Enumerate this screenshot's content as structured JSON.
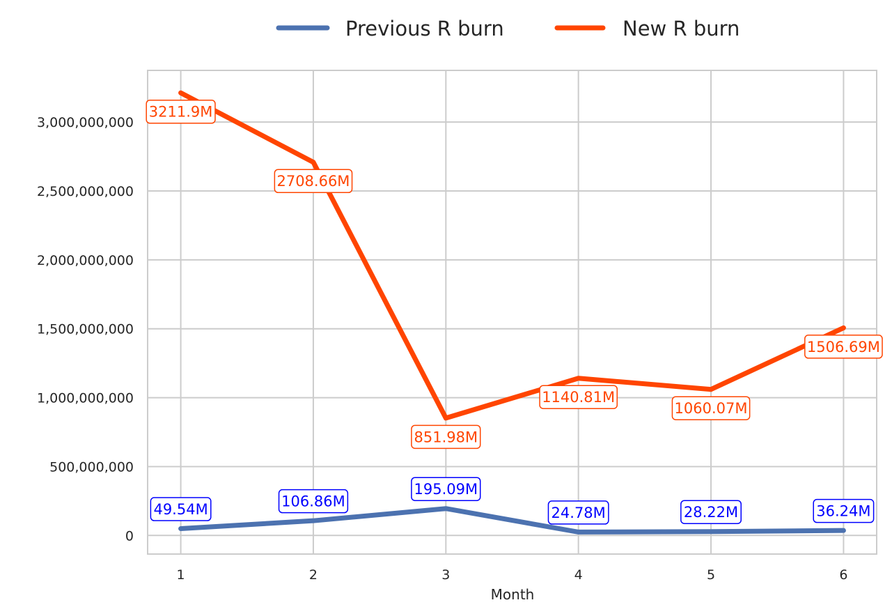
{
  "chart_data": {
    "type": "line",
    "title": "",
    "xlabel": "Month",
    "ylabel": "",
    "x": [
      1,
      2,
      3,
      4,
      5,
      6
    ],
    "xlim": [
      0.75,
      6.25
    ],
    "ylim": [
      -135000000,
      3375000000
    ],
    "y_ticks": [
      0,
      500000000,
      1000000000,
      1500000000,
      2000000000,
      2500000000,
      3000000000
    ],
    "y_tick_labels": [
      "0",
      "500,000,000",
      "1,000,000,000",
      "1,500,000,000",
      "2,000,000,000",
      "2,500,000,000",
      "3,000,000,000"
    ],
    "x_tick_labels": [
      "1",
      "2",
      "3",
      "4",
      "5",
      "6"
    ],
    "grid": true,
    "legend_position": "top-center",
    "series": [
      {
        "name": "Previous R burn",
        "color": "#4C72B0",
        "label_color": "#0000FF",
        "values": [
          49540000,
          106860000,
          195090000,
          24780000,
          28220000,
          36240000
        ],
        "labels": [
          "49.54M",
          "106.86M",
          "195.09M",
          "24.78M",
          "28.22M",
          "36.24M"
        ]
      },
      {
        "name": "New R burn",
        "color": "#FF4500",
        "label_color": "#FF4500",
        "values": [
          3211900000,
          2708660000,
          851980000,
          1140810000,
          1060070000,
          1506690000
        ],
        "labels": [
          "3211.9M",
          "2708.66M",
          "851.98M",
          "1140.81M",
          "1060.07M",
          "1506.69M"
        ]
      }
    ]
  }
}
